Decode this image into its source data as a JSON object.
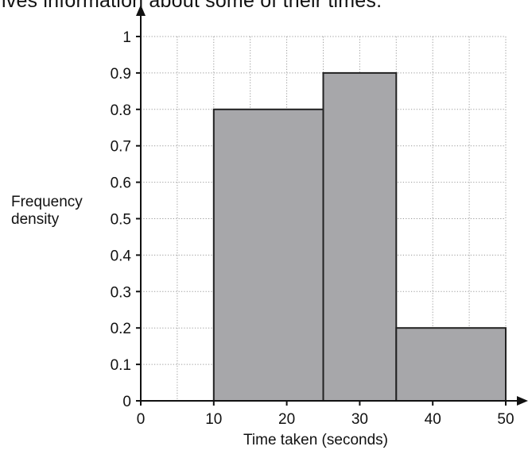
{
  "intro_text": "ives information about some of their times.",
  "chart_data": {
    "type": "histogram",
    "xlabel": "Time taken (seconds)",
    "ylabel": [
      "Frequency",
      "density"
    ],
    "xlim": [
      0,
      50
    ],
    "ylim": [
      0,
      1
    ],
    "x_ticks": [
      "0",
      "10",
      "20",
      "30",
      "40",
      "50"
    ],
    "y_ticks": [
      "0",
      "0.1",
      "0.2",
      "0.3",
      "0.4",
      "0.5",
      "0.6",
      "0.7",
      "0.8",
      "0.9",
      "1"
    ],
    "grid": true,
    "bars": [
      {
        "x_start": 10,
        "x_end": 25,
        "frequency_density": 0.8
      },
      {
        "x_start": 25,
        "x_end": 35,
        "frequency_density": 0.9
      },
      {
        "x_start": 35,
        "x_end": 50,
        "frequency_density": 0.2
      }
    ],
    "colors": {
      "bar_fill": "#a7a7aa",
      "bar_stroke": "#222222",
      "grid": "#9a9a9a",
      "axis": "#111111"
    }
  }
}
